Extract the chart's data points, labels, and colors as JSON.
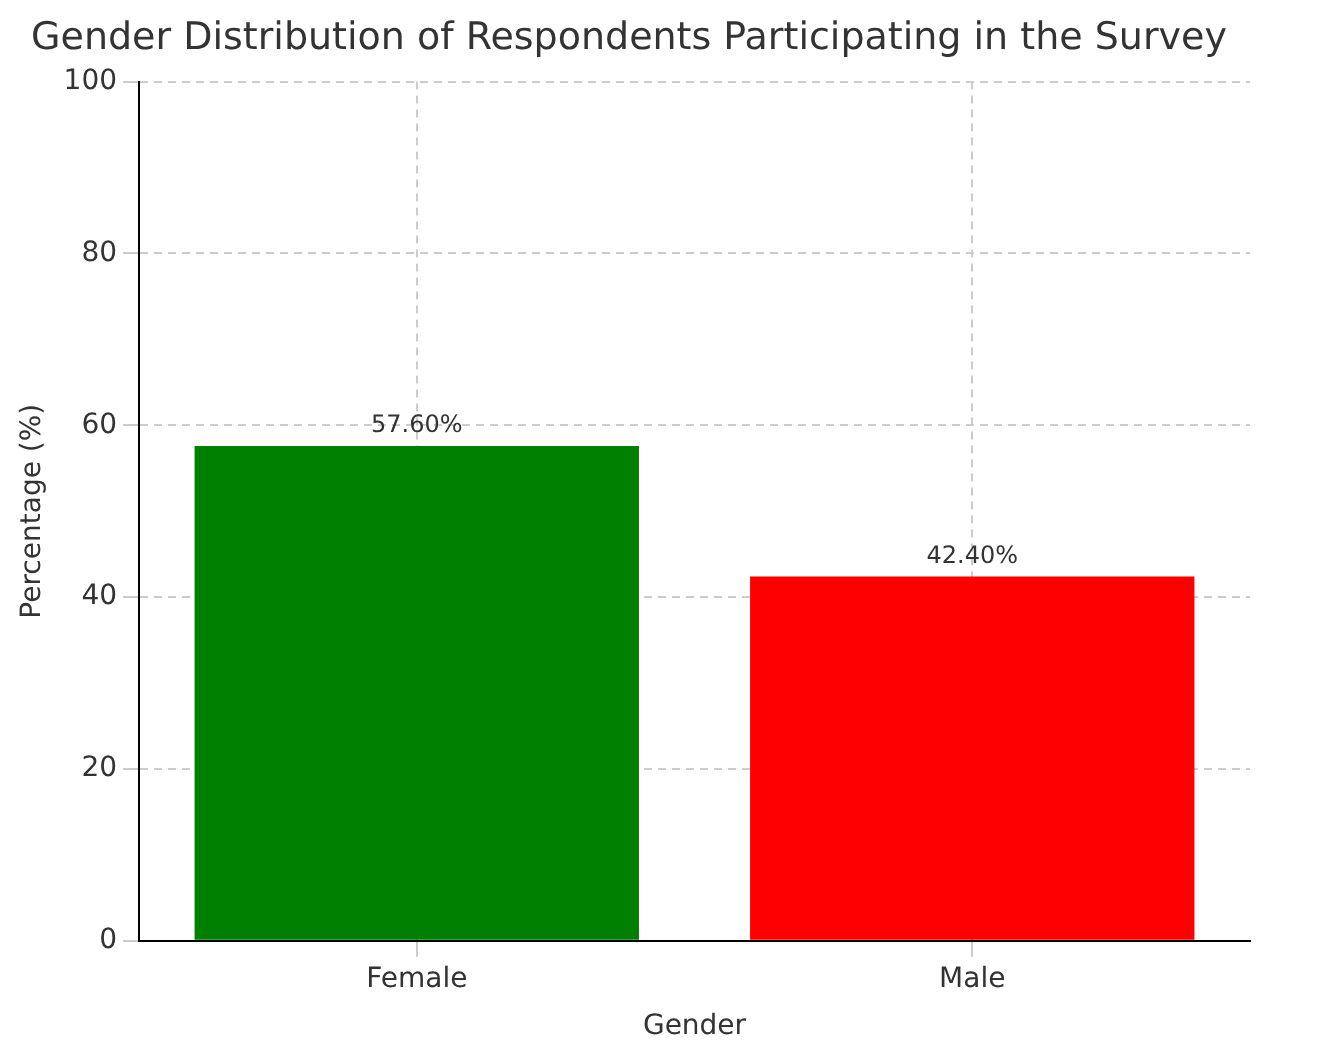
{
  "chart_data": {
    "type": "bar",
    "title": "Gender Distribution of Respondents Participating in the Survey",
    "xlabel": "Gender",
    "ylabel": "Percentage (%)",
    "categories": [
      "Female",
      "Male"
    ],
    "values": [
      57.6,
      42.4
    ],
    "colors": [
      "#008000",
      "#ff0000"
    ],
    "value_labels": [
      "57.60%",
      "42.40%"
    ],
    "ylim": [
      0,
      100
    ],
    "yticks": [
      0,
      20,
      40,
      60,
      80,
      100
    ],
    "grid": true,
    "legend": false
  }
}
